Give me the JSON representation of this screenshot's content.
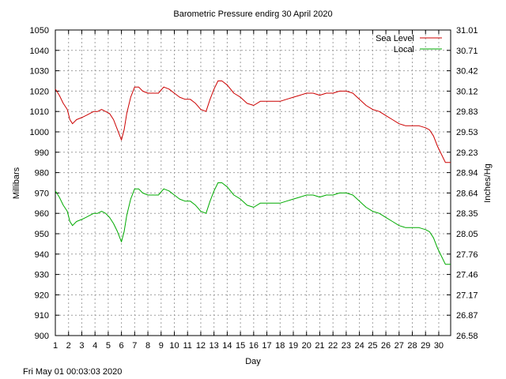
{
  "chart_data": {
    "type": "line",
    "title": "Barometric Pressure endirg 30 April 2020",
    "xlabel": "Day",
    "ylabel": "Millibars",
    "y2label": "Inches/Hg",
    "xlim": [
      1,
      30.9
    ],
    "ylim": [
      900,
      1050
    ],
    "x_ticks": [
      "1",
      "2",
      "3",
      "4",
      "5",
      "6",
      "7",
      "8",
      "9",
      "10",
      "11",
      "12",
      "13",
      "14",
      "15",
      "16",
      "17",
      "18",
      "19",
      "20",
      "21",
      "22",
      "23",
      "24",
      "25",
      "26",
      "27",
      "28",
      "29",
      "30"
    ],
    "y_ticks": [
      "900",
      "910",
      "920",
      "930",
      "940",
      "950",
      "960",
      "970",
      "980",
      "990",
      "1000",
      "1010",
      "1020",
      "1030",
      "1040",
      "1050"
    ],
    "y2_ticks": [
      "26.58",
      "26.87",
      "27.17",
      "27.46",
      "27.76",
      "28.05",
      "28.35",
      "28.64",
      "28.94",
      "29.23",
      "29.53",
      "29.83",
      "30.12",
      "30.42",
      "30.71",
      "31.01"
    ],
    "grid": true,
    "legend_position": "top-right",
    "series": [
      {
        "name": "Sea Level",
        "color": "#cc0000",
        "x": [
          1.0,
          1.3,
          1.6,
          1.9,
          2.1,
          2.3,
          2.6,
          3.0,
          3.3,
          3.6,
          3.9,
          4.2,
          4.5,
          4.8,
          5.1,
          5.4,
          5.7,
          6.0,
          6.2,
          6.4,
          6.7,
          7.0,
          7.3,
          7.6,
          8.0,
          8.4,
          8.8,
          9.2,
          9.6,
          10.0,
          10.4,
          10.8,
          11.2,
          11.6,
          12.0,
          12.4,
          12.7,
          13.0,
          13.3,
          13.6,
          14.0,
          14.5,
          15.0,
          15.5,
          16.0,
          16.5,
          17.0,
          17.5,
          18.0,
          18.5,
          19.0,
          19.5,
          20.0,
          20.5,
          21.0,
          21.5,
          22.0,
          22.5,
          23.0,
          23.5,
          24.0,
          24.5,
          25.0,
          25.5,
          26.0,
          26.5,
          27.0,
          27.5,
          28.0,
          28.5,
          29.0,
          29.3,
          29.6,
          29.9,
          30.2,
          30.5,
          30.9
        ],
        "values": [
          1021,
          1018,
          1014,
          1011,
          1006,
          1004,
          1006,
          1007,
          1008,
          1009,
          1010,
          1010,
          1011,
          1010,
          1009,
          1006,
          1001,
          996,
          1001,
          1009,
          1017,
          1022,
          1022,
          1020,
          1019,
          1019,
          1019,
          1022,
          1021,
          1019,
          1017,
          1016,
          1016,
          1014,
          1011,
          1010,
          1016,
          1021,
          1025,
          1025,
          1023,
          1019,
          1017,
          1014,
          1013,
          1015,
          1015,
          1015,
          1015,
          1016,
          1017,
          1018,
          1019,
          1019,
          1018,
          1019,
          1019,
          1020,
          1020,
          1019,
          1016,
          1013,
          1011,
          1010,
          1008,
          1006,
          1004,
          1003,
          1003,
          1003,
          1002,
          1001,
          998,
          993,
          989,
          985,
          985
        ]
      },
      {
        "name": "Local",
        "color": "#00aa00",
        "x": [
          1.0,
          1.3,
          1.6,
          1.9,
          2.1,
          2.3,
          2.6,
          3.0,
          3.3,
          3.6,
          3.9,
          4.2,
          4.5,
          4.8,
          5.1,
          5.4,
          5.7,
          6.0,
          6.2,
          6.4,
          6.7,
          7.0,
          7.3,
          7.6,
          8.0,
          8.4,
          8.8,
          9.2,
          9.6,
          10.0,
          10.4,
          10.8,
          11.2,
          11.6,
          12.0,
          12.4,
          12.7,
          13.0,
          13.3,
          13.6,
          14.0,
          14.5,
          15.0,
          15.5,
          16.0,
          16.5,
          17.0,
          17.5,
          18.0,
          18.5,
          19.0,
          19.5,
          20.0,
          20.5,
          21.0,
          21.5,
          22.0,
          22.5,
          23.0,
          23.5,
          24.0,
          24.5,
          25.0,
          25.5,
          26.0,
          26.5,
          27.0,
          27.5,
          28.0,
          28.5,
          29.0,
          29.3,
          29.6,
          29.9,
          30.2,
          30.5,
          30.9
        ],
        "values": [
          971,
          968,
          964,
          961,
          956,
          954,
          956,
          957,
          958,
          959,
          960,
          960,
          961,
          960,
          958,
          955,
          951,
          946,
          951,
          959,
          967,
          972,
          972,
          970,
          969,
          969,
          969,
          972,
          971,
          969,
          967,
          966,
          966,
          964,
          961,
          960,
          966,
          971,
          975,
          975,
          973,
          969,
          967,
          964,
          963,
          965,
          965,
          965,
          965,
          966,
          967,
          968,
          969,
          969,
          968,
          969,
          969,
          970,
          970,
          969,
          966,
          963,
          961,
          960,
          958,
          956,
          954,
          953,
          953,
          953,
          952,
          951,
          948,
          943,
          939,
          935,
          935
        ]
      }
    ]
  },
  "footer": {
    "timestamp": "Fri May 01 00:03:03 2020"
  }
}
